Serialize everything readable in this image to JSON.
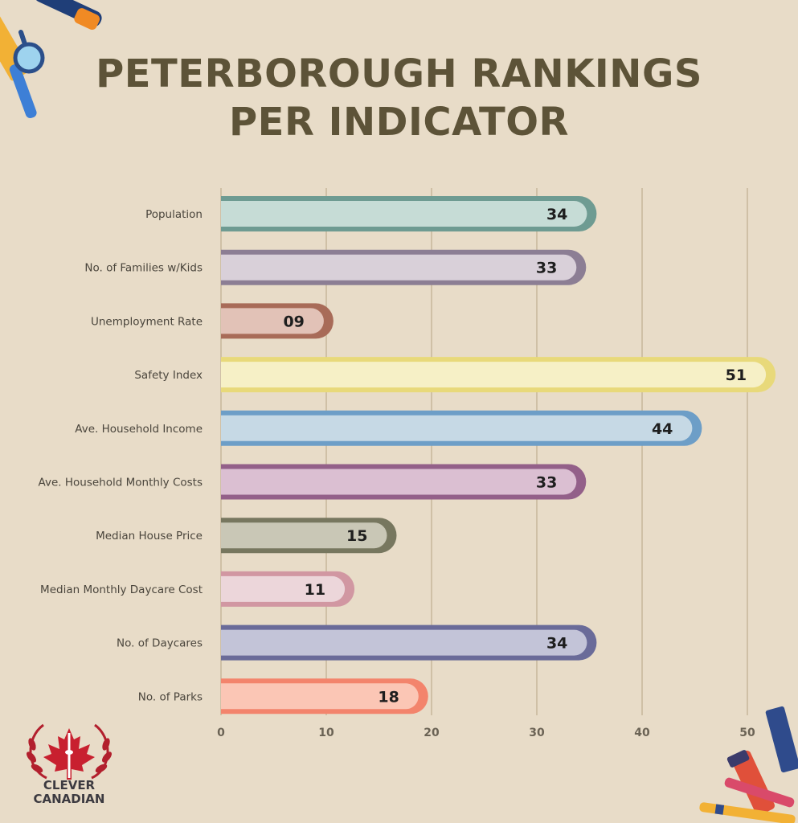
{
  "title": {
    "line1": "PETERBOROUGH RANKINGS",
    "line2": "PER INDICATOR"
  },
  "logo": {
    "line1": "CLEVER",
    "line2": "CANADIAN"
  },
  "chart_data": {
    "type": "bar",
    "orientation": "horizontal",
    "categories": [
      "Population",
      "No. of Families w/Kids",
      "Unemployment Rate",
      "Safety Index",
      "Ave. Household Income",
      "Ave. Household Monthly Costs",
      "Median House Price",
      "Median Monthly Daycare Cost",
      "No. of Daycares",
      "No. of Parks"
    ],
    "values": [
      34,
      33,
      9,
      51,
      44,
      33,
      15,
      11,
      34,
      18
    ],
    "value_labels": [
      "34",
      "33",
      "09",
      "51",
      "44",
      "33",
      "15",
      "11",
      "34",
      "18"
    ],
    "colors": [
      {
        "fill": "#c6dcd6",
        "border": "#6e9b92"
      },
      {
        "fill": "#d9d0d9",
        "border": "#8c7e94"
      },
      {
        "fill": "#e2c2b7",
        "border": "#a86b58"
      },
      {
        "fill": "#f6f0c6",
        "border": "#e8d97a"
      },
      {
        "fill": "#c6d9e5",
        "border": "#6d9ec7"
      },
      {
        "fill": "#dbbfd2",
        "border": "#936089"
      },
      {
        "fill": "#c9c7b6",
        "border": "#77775f"
      },
      {
        "fill": "#ecd6da",
        "border": "#d197a2"
      },
      {
        "fill": "#c3c4d8",
        "border": "#6a6b99"
      },
      {
        "fill": "#fbc6b5",
        "border": "#f3846c"
      }
    ],
    "xlim": [
      0,
      50
    ],
    "xticks": [
      0,
      10,
      20,
      30,
      40,
      50
    ],
    "grid": true,
    "title": "PETERBOROUGH RANKINGS PER INDICATOR",
    "xlabel": "",
    "ylabel": ""
  }
}
